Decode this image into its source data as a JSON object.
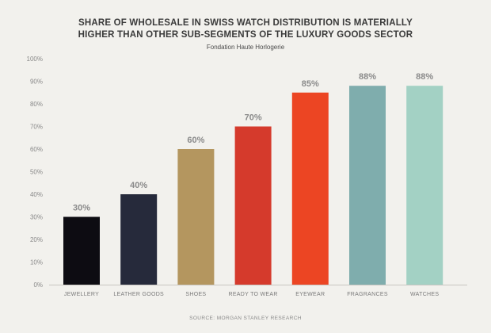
{
  "chart_data": {
    "type": "bar",
    "title_lines": [
      "SHARE OF WHOLESALE IN SWISS WATCH DISTRIBUTION IS MATERIALLY",
      "HIGHER THAN OTHER SUB-SEGMENTS OF THE LUXURY GOODS SECTOR"
    ],
    "subtitle": "Fondation Haute Horlogerie",
    "source": "SOURCE: MORGAN STANLEY RESEARCH",
    "categories": [
      "JEWELLERY",
      "LEATHER GOODS",
      "SHOES",
      "READY TO WEAR",
      "EYEWEAR",
      "FRAGRANCES",
      "WATCHES"
    ],
    "values": [
      30,
      40,
      60,
      70,
      85,
      88,
      88
    ],
    "data_labels": [
      "30%",
      "40%",
      "60%",
      "70%",
      "85%",
      "88%",
      "88%"
    ],
    "bar_colors": [
      "#0d0c12",
      "#262a3b",
      "#b4965f",
      "#d53a2c",
      "#ec4523",
      "#7fadad",
      "#a3d1c4"
    ],
    "y_ticks": [
      0,
      10,
      20,
      30,
      40,
      50,
      60,
      70,
      80,
      90,
      100
    ],
    "y_tick_labels": [
      "0%",
      "10%",
      "20%",
      "30%",
      "40%",
      "50%",
      "60%",
      "70%",
      "80%",
      "90%",
      "100%"
    ],
    "ylim": [
      0,
      100
    ],
    "xlabel": "",
    "ylabel": "",
    "grid": false,
    "legend": "none"
  }
}
